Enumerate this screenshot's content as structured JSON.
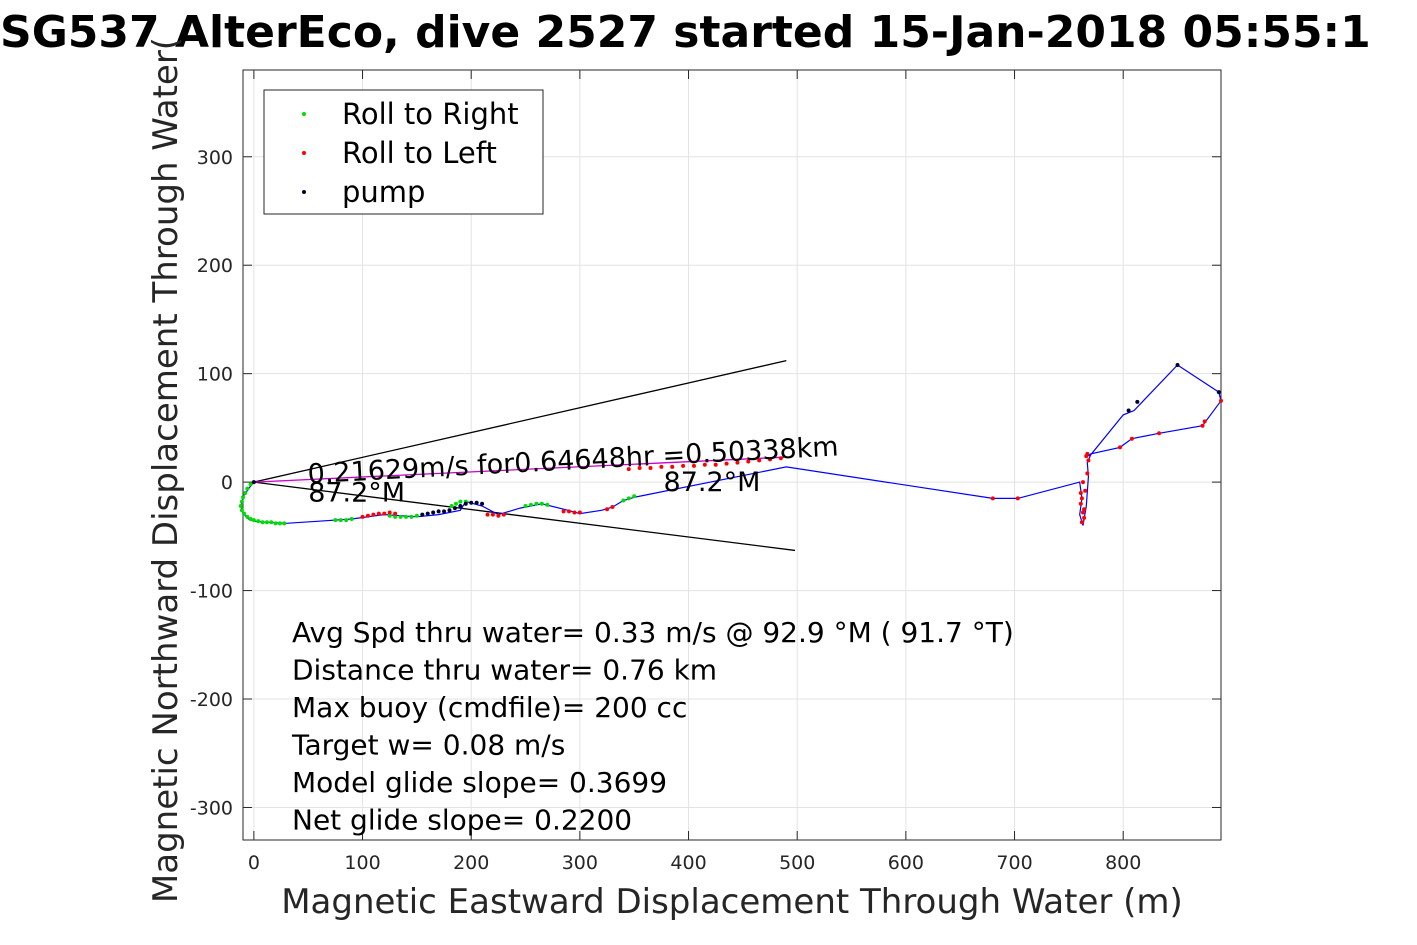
{
  "chart_data": {
    "type": "line",
    "title": "SG537 AlterEco, dive 2527 started 15-Jan-2018 05:55:1",
    "xlabel": "Magnetic Eastward Displacement Through Water (m)",
    "ylabel": "Magnetic Northward Displacement Through Water(",
    "xlim": [
      -10,
      890
    ],
    "ylim": [
      -330,
      380
    ],
    "xticks": [
      0,
      100,
      200,
      300,
      400,
      500,
      600,
      700,
      800
    ],
    "yticks": [
      -300,
      -200,
      -100,
      0,
      100,
      200,
      300
    ],
    "xtick_labels": [
      "0",
      "100",
      "200",
      "300",
      "400",
      "500",
      "600",
      "700",
      "800"
    ],
    "ytick_labels": [
      "-300",
      "-200",
      "-100",
      "0",
      "100",
      "200",
      "300"
    ],
    "grid": true,
    "legend_position": "top-left",
    "series": [
      {
        "name": "Roll to Right",
        "color": "#00dd00",
        "marker": "dot",
        "x": [
          -3,
          -6,
          -8,
          -10,
          -11,
          -12,
          -11,
          -9,
          -6,
          -3,
          0,
          4,
          8,
          12,
          16,
          20,
          24,
          28,
          75,
          80,
          85,
          90,
          125,
          130,
          135,
          140,
          145,
          150,
          182,
          186,
          190,
          195,
          250,
          255,
          260,
          265,
          270,
          340,
          345,
          350
        ],
        "y": [
          -2,
          -6,
          -10,
          -14,
          -18,
          -22,
          -26,
          -29,
          -32,
          -34,
          -35,
          -36,
          -37,
          -37,
          -37,
          -38,
          -38,
          -38,
          -35,
          -35,
          -35,
          -34,
          -31,
          -32,
          -32,
          -32,
          -32,
          -31,
          -22,
          -20,
          -18,
          -18,
          -22,
          -21,
          -20,
          -20,
          -21,
          -17,
          -15,
          -13
        ]
      },
      {
        "name": "Roll to Left",
        "color": "#ff0000",
        "marker": "dot",
        "x": [
          100,
          105,
          110,
          115,
          120,
          125,
          130,
          215,
          220,
          225,
          230,
          285,
          290,
          295,
          300,
          325,
          330,
          345,
          355,
          365,
          375,
          385,
          395,
          405,
          415,
          425,
          435,
          445,
          455,
          465,
          475,
          485,
          680,
          703,
          762,
          764,
          763,
          761,
          765,
          767,
          768,
          766,
          767,
          764,
          762,
          761,
          763,
          797,
          808,
          833,
          873,
          875,
          890
        ],
        "y": [
          -32,
          -31,
          -30,
          -29,
          -29,
          -28,
          -29,
          -30,
          -30,
          -31,
          -30,
          -27,
          -27,
          -28,
          -28,
          -25,
          -23,
          12,
          13,
          13,
          14,
          14,
          15,
          15,
          16,
          16,
          17,
          18,
          19,
          20,
          21,
          22,
          -15,
          -15,
          -37,
          -33,
          -28,
          -20,
          -8,
          8,
          20,
          24,
          26,
          -25,
          -15,
          -10,
          0,
          32,
          40,
          45,
          52,
          56,
          75
        ]
      },
      {
        "name": "pump",
        "color": "#000033",
        "marker": "dot",
        "x": [
          155,
          160,
          165,
          170,
          175,
          180,
          185,
          190,
          195,
          200,
          205,
          210,
          0,
          805,
          813,
          850,
          888
        ],
        "y": [
          -30,
          -29,
          -28,
          -27,
          -27,
          -26,
          -24,
          -22,
          -20,
          -19,
          -19,
          -20,
          0,
          66,
          74,
          108,
          83
        ]
      }
    ],
    "track": {
      "name": "dive track",
      "color": "#0000ff",
      "x": [
        0,
        -4,
        -9,
        -12,
        -10,
        -5,
        0,
        10,
        30,
        60,
        90,
        120,
        150,
        170,
        190,
        195,
        210,
        225,
        245,
        265,
        285,
        300,
        320,
        330,
        340,
        350,
        360,
        490,
        680,
        703,
        760,
        762,
        760,
        763,
        766,
        768,
        767,
        770,
        800,
        810,
        850,
        888,
        890,
        873,
        833,
        808,
        797,
        770,
        768
      ],
      "y": [
        0,
        -5,
        -12,
        -22,
        -29,
        -34,
        -36,
        -37,
        -38,
        -36,
        -34,
        -30,
        -32,
        -30,
        -26,
        -18,
        -22,
        -30,
        -24,
        -20,
        -25,
        -29,
        -26,
        -23,
        -17,
        -14,
        -12,
        14,
        -15,
        -15,
        0,
        -15,
        -30,
        -40,
        -22,
        5,
        18,
        25,
        62,
        66,
        108,
        83,
        75,
        52,
        45,
        40,
        32,
        26,
        24
      ]
    },
    "heading_lines": {
      "color": "#000000",
      "upper": {
        "x": [
          0,
          490
        ],
        "y": [
          0,
          112
        ]
      },
      "lower": {
        "x": [
          0,
          498
        ],
        "y": [
          0,
          -63
        ]
      },
      "middle": {
        "x": [
          0,
          488
        ],
        "y": [
          0,
          23
        ],
        "color": "#cc00cc"
      }
    },
    "annotations": [
      {
        "text": "0.21629m/s for0.64648hr =0.50338km",
        "x": 50,
        "y": -1,
        "rotation": -3
      },
      {
        "text": "87.2°M",
        "x": 50,
        "y": -18,
        "rotation": 0
      },
      {
        "text": "87.2°M",
        "x": 377,
        "y": -8,
        "rotation": 0
      }
    ],
    "stats": [
      "Avg Spd thru water=  0.33 m/s @  92.9 °M ( 91.7 °T)",
      "Distance thru water=  0.76 km",
      "Max buoy (cmdfile)= 200 cc",
      "Target w= 0.08 m/s",
      "Model glide slope= 0.3699",
      "Net glide slope= 0.2200"
    ]
  }
}
